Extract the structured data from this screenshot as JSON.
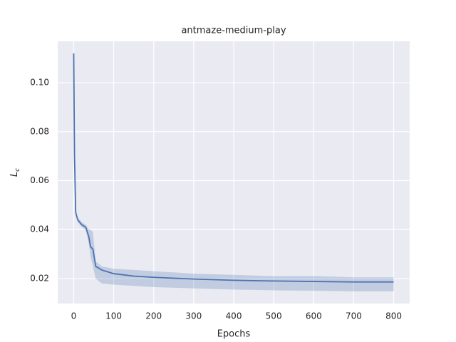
{
  "chart_data": {
    "type": "line",
    "title": "antmaze-medium-play",
    "xlabel": "Epochs",
    "ylabel": "L",
    "ylabel_sub": "c",
    "x": [
      0,
      2,
      5,
      10,
      20,
      30,
      38,
      42,
      48,
      55,
      70,
      100,
      150,
      200,
      300,
      400,
      500,
      600,
      700,
      800
    ],
    "series": [
      {
        "color": "#4c72b0",
        "values": [
          0.112,
          0.07,
          0.047,
          0.044,
          0.042,
          0.041,
          0.037,
          0.033,
          0.032,
          0.025,
          0.0235,
          0.022,
          0.021,
          0.0205,
          0.0198,
          0.0193,
          0.019,
          0.0188,
          0.0186,
          0.0186
        ],
        "band_lower": [
          0.112,
          0.068,
          0.046,
          0.043,
          0.041,
          0.04,
          0.034,
          0.029,
          0.025,
          0.02,
          0.018,
          0.0175,
          0.017,
          0.0165,
          0.016,
          0.0155,
          0.0152,
          0.015,
          0.0148,
          0.0148
        ],
        "band_upper": [
          0.112,
          0.072,
          0.048,
          0.045,
          0.043,
          0.042,
          0.04,
          0.04,
          0.039,
          0.027,
          0.025,
          0.024,
          0.0235,
          0.023,
          0.022,
          0.0215,
          0.021,
          0.021,
          0.0205,
          0.0205
        ]
      }
    ],
    "xlim": [
      -40,
      840
    ],
    "xticks": [
      0,
      100,
      200,
      300,
      400,
      500,
      600,
      700,
      800
    ],
    "ylim": [
      0.0098,
      0.1169
    ],
    "yticks": [
      {
        "value": 0.02,
        "label": "0.02"
      },
      {
        "value": 0.04,
        "label": "0.04"
      },
      {
        "value": 0.06,
        "label": "0.06"
      },
      {
        "value": 0.08,
        "label": "0.08"
      },
      {
        "value": 0.1,
        "label": "0.10"
      }
    ],
    "grid": true,
    "background": "#eaeaf2"
  }
}
